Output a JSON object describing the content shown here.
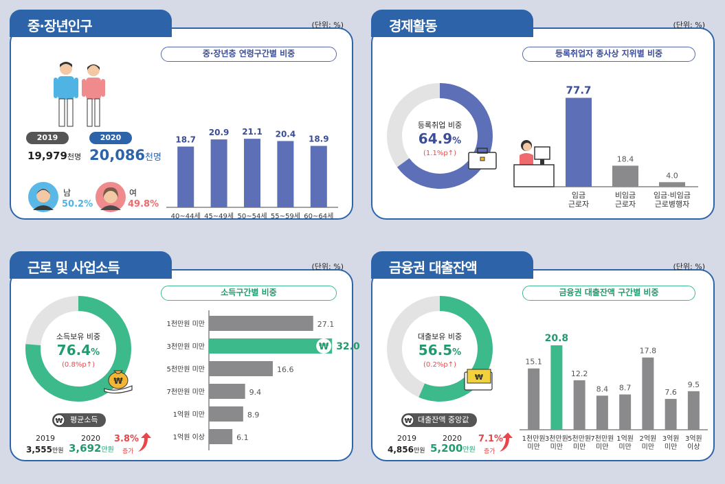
{
  "panels": {
    "population": {
      "title": "중·장년인구",
      "unit": "(단위: %)",
      "subtitle": "중·장년층 연령구간별 비중",
      "years": [
        "2019",
        "2020"
      ],
      "val2019": "19,979",
      "val2020": "20,086",
      "unit_people": "천명",
      "male_label": "남",
      "male_pct": "50.2%",
      "female_label": "여",
      "female_pct": "49.8%"
    },
    "economy": {
      "title": "경제활동",
      "unit": "(단위: %)",
      "subtitle": "등록취업자 종사상 지위별 비중",
      "donut_label": "등록취업 비중",
      "donut_value": "64.9",
      "donut_pct_sign": "%",
      "donut_change": "(1.1%p",
      "donut_change_arrow": "↑)"
    },
    "income": {
      "title": "근로 및 사업소득",
      "unit": "(단위: %)",
      "subtitle": "소득구간별 비중",
      "donut_label": "소득보유 비중",
      "donut_value": "76.4",
      "donut_pct_sign": "%",
      "donut_change": "(0.8%p",
      "donut_change_arrow": "↑)",
      "avg_label": "평균소득",
      "year1": "2019",
      "year2": "2020",
      "val1": "3,555",
      "val2": "3,692",
      "unit_money": "만원",
      "increase": "3.8%",
      "increase_label": "증가"
    },
    "loan": {
      "title": "금융권 대출잔액",
      "unit": "(단위: %)",
      "subtitle": "금융권 대출잔액 구간별 비중",
      "donut_label": "대출보유 비중",
      "donut_value": "56.5",
      "donut_pct_sign": "%",
      "donut_change": "(0.2%p",
      "donut_change_arrow": "↑)",
      "median_label": "대출잔액 중앙값",
      "year1": "2019",
      "year2": "2020",
      "val1": "4,856",
      "val2": "5,200",
      "unit_money": "만원",
      "increase": "7.1%",
      "increase_label": "증가"
    }
  },
  "colors": {
    "blue": "#5c6fb7",
    "green": "#3cba8c",
    "gray": "#8a8a8c",
    "red": "#e8474a",
    "navy": "#2d63a8",
    "light_gray": "#e3e3e3"
  },
  "chart_data": [
    {
      "type": "bar",
      "title": "중·장년층 연령구간별 비중",
      "categories": [
        "40~44세",
        "45~49세",
        "50~54세",
        "55~59세",
        "60~64세"
      ],
      "values": [
        18.7,
        20.9,
        21.1,
        20.4,
        18.9
      ],
      "labels": [
        "18.7",
        "20.9",
        "21.1",
        "20.4",
        "18.9"
      ],
      "ylim": [
        0,
        30
      ]
    },
    {
      "type": "pie",
      "title": "등록취업 비중",
      "values": [
        64.9,
        35.1
      ]
    },
    {
      "type": "bar",
      "title": "등록취업자 종사상 지위별 비중",
      "categories": [
        "임금|근로자",
        "비임금|근로자",
        "임금·비임금|근로병행자"
      ],
      "values": [
        77.7,
        18.4,
        4.0
      ],
      "labels": [
        "77.7",
        "18.4",
        "4.0"
      ],
      "ylim": [
        0,
        90
      ]
    },
    {
      "type": "pie",
      "title": "소득보유 비중",
      "values": [
        76.4,
        23.6
      ]
    },
    {
      "type": "bar",
      "orientation": "horizontal",
      "title": "소득구간별 비중",
      "categories": [
        "1천만원 미만",
        "3천만원 미만",
        "5천만원 미만",
        "7천만원 미만",
        "1억원 미만",
        "1억원 이상"
      ],
      "values": [
        27.1,
        32.0,
        16.6,
        9.4,
        8.9,
        6.1
      ],
      "labels": [
        "27.1",
        "32.0",
        "16.6",
        "9.4",
        "8.9",
        "6.1"
      ],
      "highlight_index": 1,
      "xlim": [
        0,
        35
      ]
    },
    {
      "type": "pie",
      "title": "대출보유 비중",
      "values": [
        56.5,
        43.5
      ]
    },
    {
      "type": "bar",
      "title": "금융권 대출잔액 구간별 비중",
      "categories": [
        "1천만원|미만",
        "3천만원|미만",
        "5천만원|미만",
        "7천만원|미만",
        "1억원|미만",
        "2억원|미만",
        "3억원|미만",
        "3억원|이상"
      ],
      "values": [
        15.1,
        20.8,
        12.2,
        8.4,
        8.7,
        17.8,
        7.6,
        9.5
      ],
      "labels": [
        "15.1",
        "20.8",
        "12.2",
        "8.4",
        "8.7",
        "17.8",
        "7.6",
        "9.5"
      ],
      "highlight_index": 1,
      "ylim": [
        0,
        23
      ]
    }
  ]
}
